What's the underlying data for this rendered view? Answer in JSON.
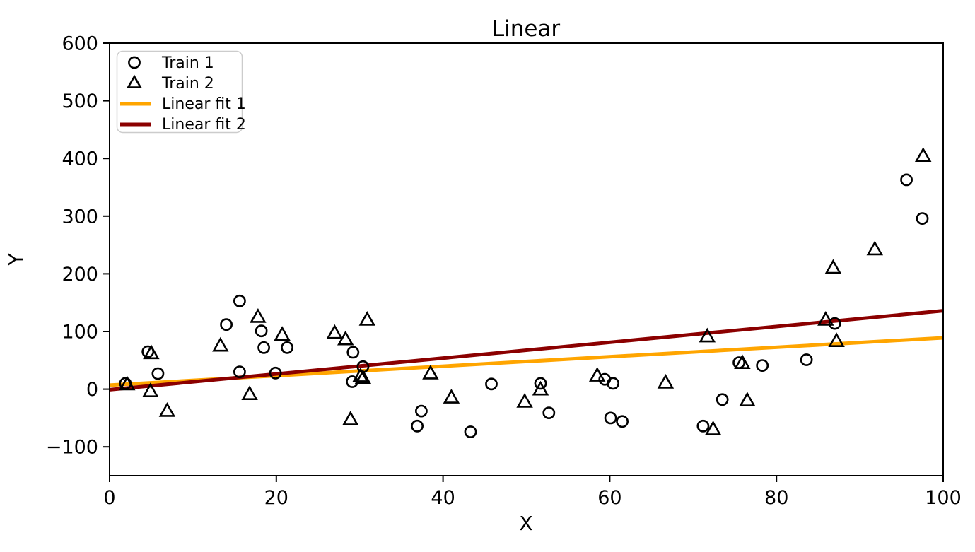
{
  "chart_data": {
    "type": "scatter",
    "title": "Linear",
    "xlabel": "X",
    "ylabel": "Y",
    "xlim": [
      0,
      100
    ],
    "ylim": [
      -150,
      600
    ],
    "x_ticks": [
      0,
      20,
      40,
      60,
      80,
      100
    ],
    "y_ticks": [
      -100,
      0,
      100,
      200,
      300,
      400,
      500,
      600
    ],
    "grid": false,
    "legend_position": "upper-left",
    "marker_color": "#000000",
    "series": [
      {
        "name": "Train 1",
        "marker": "circle",
        "color": "#000000",
        "points": [
          [
            1.9,
            10
          ],
          [
            4.6,
            65
          ],
          [
            5.8,
            27
          ],
          [
            14.0,
            112
          ],
          [
            15.6,
            153
          ],
          [
            15.6,
            30
          ],
          [
            18.2,
            101
          ],
          [
            18.5,
            72
          ],
          [
            19.9,
            28
          ],
          [
            21.3,
            72
          ],
          [
            29.2,
            64
          ],
          [
            29.1,
            13
          ],
          [
            30.4,
            39
          ],
          [
            36.9,
            -64
          ],
          [
            37.4,
            -38
          ],
          [
            43.3,
            -74
          ],
          [
            45.8,
            9
          ],
          [
            51.7,
            10
          ],
          [
            52.7,
            -41
          ],
          [
            59.4,
            17
          ],
          [
            60.4,
            10
          ],
          [
            60.1,
            -50
          ],
          [
            61.5,
            -56
          ],
          [
            71.2,
            -64
          ],
          [
            73.5,
            -18
          ],
          [
            75.5,
            46
          ],
          [
            78.3,
            41
          ],
          [
            83.6,
            51
          ],
          [
            87.0,
            114
          ],
          [
            95.6,
            363
          ],
          [
            97.5,
            296
          ]
        ]
      },
      {
        "name": "Train 2",
        "marker": "triangle",
        "color": "#000000",
        "points": [
          [
            2.1,
            8
          ],
          [
            5.0,
            62
          ],
          [
            4.9,
            -4
          ],
          [
            6.9,
            -38
          ],
          [
            13.3,
            75
          ],
          [
            16.8,
            -9
          ],
          [
            17.8,
            125
          ],
          [
            20.7,
            94
          ],
          [
            27.0,
            97
          ],
          [
            28.3,
            86
          ],
          [
            28.9,
            -53
          ],
          [
            30.1,
            22
          ],
          [
            30.4,
            19
          ],
          [
            30.9,
            120
          ],
          [
            38.5,
            27
          ],
          [
            41.0,
            -15
          ],
          [
            49.8,
            -22
          ],
          [
            51.7,
            -1
          ],
          [
            58.5,
            23
          ],
          [
            66.7,
            11
          ],
          [
            71.7,
            91
          ],
          [
            72.4,
            -70
          ],
          [
            75.9,
            45
          ],
          [
            76.5,
            -20
          ],
          [
            85.9,
            120
          ],
          [
            86.8,
            210
          ],
          [
            87.2,
            83
          ],
          [
            91.8,
            242
          ],
          [
            97.6,
            404
          ]
        ]
      }
    ],
    "fit_lines": [
      {
        "name": "Linear fit 1",
        "color": "#FFA500",
        "slope": 0.82,
        "intercept": 7,
        "x_range": [
          0,
          100
        ]
      },
      {
        "name": "Linear fit 2",
        "color": "#8B0000",
        "slope": 1.37,
        "intercept": -1,
        "x_range": [
          0,
          100
        ]
      }
    ],
    "legend": {
      "entries": [
        "Train 1",
        "Train 2",
        "Linear fit 1",
        "Linear fit 2"
      ],
      "border_color": "#cccccc",
      "background": "#ffffff"
    }
  }
}
